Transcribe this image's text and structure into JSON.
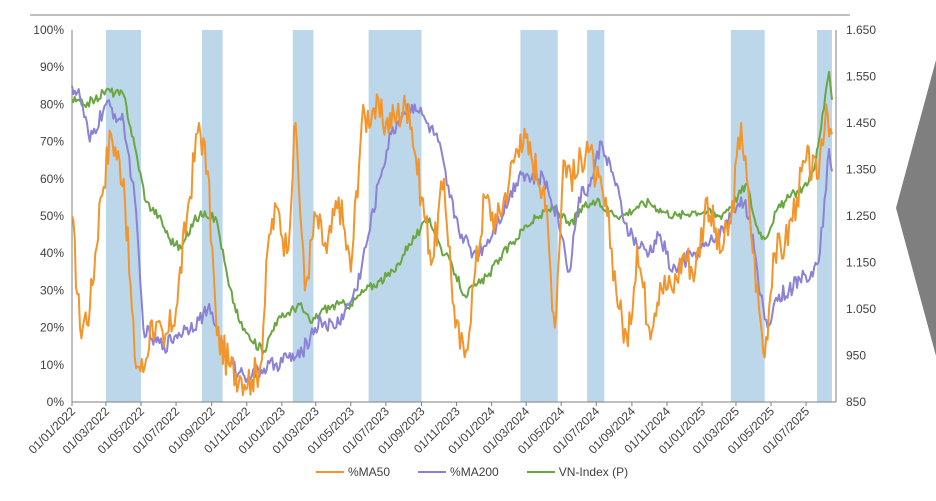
{
  "chart_data": {
    "type": "line",
    "title": "",
    "xlabel": "",
    "ylabel_left": "",
    "ylabel_right": "",
    "x_range": [
      "01/01/2022",
      "01/09/2025"
    ],
    "left_axis": {
      "ylim": [
        0,
        100
      ],
      "ticks": [
        "0%",
        "10%",
        "20%",
        "30%",
        "40%",
        "50%",
        "60%",
        "70%",
        "80%",
        "90%",
        "100%"
      ]
    },
    "right_axis": {
      "ylim": [
        850,
        1650
      ],
      "ticks": [
        "850",
        "950",
        "1.050",
        "1.150",
        "1.250",
        "1.350",
        "1.450",
        "1.550",
        "1.650"
      ]
    },
    "x_ticks": [
      "01/01/2022",
      "01/03/2022",
      "01/05/2022",
      "01/07/2022",
      "01/09/2022",
      "01/11/2022",
      "01/01/2023",
      "01/03/2023",
      "01/05/2023",
      "01/07/2023",
      "01/09/2023",
      "01/11/2023",
      "01/01/2024",
      "01/03/2024",
      "01/05/2024",
      "01/07/2024",
      "01/09/2024",
      "01/11/2024",
      "01/01/2025",
      "01/03/2025",
      "01/05/2025",
      "01/07/2025"
    ],
    "shaded_periods": [
      [
        "2022-03-01",
        "2022-05-01"
      ],
      [
        "2022-08-15",
        "2022-09-20"
      ],
      [
        "2023-01-20",
        "2023-02-25"
      ],
      [
        "2023-06-01",
        "2023-09-01"
      ],
      [
        "2024-02-20",
        "2024-04-25"
      ],
      [
        "2024-06-15",
        "2024-07-15"
      ],
      [
        "2025-02-20",
        "2025-04-20"
      ],
      [
        "2025-07-20",
        "2025-08-15"
      ]
    ],
    "colors": {
      "ma50": "#f2952c",
      "ma200": "#8b82d6",
      "vnindex": "#6aa641",
      "shade": "#bdd7ea",
      "axis": "#7f7f7f"
    },
    "series": [
      {
        "name": "%MA50",
        "axis": "left",
        "color": "#f2952c",
        "x": [
          "2022-01-01",
          "2022-01-15",
          "2022-02-01",
          "2022-02-20",
          "2022-03-10",
          "2022-04-01",
          "2022-04-20",
          "2022-05-05",
          "2022-05-20",
          "2022-06-10",
          "2022-07-01",
          "2022-07-20",
          "2022-08-10",
          "2022-08-25",
          "2022-09-10",
          "2022-10-01",
          "2022-10-20",
          "2022-11-10",
          "2022-11-25",
          "2022-12-10",
          "2022-12-25",
          "2023-01-10",
          "2023-01-25",
          "2023-02-10",
          "2023-03-01",
          "2023-03-20",
          "2023-04-10",
          "2023-05-01",
          "2023-05-20",
          "2023-06-10",
          "2023-07-01",
          "2023-07-20",
          "2023-08-10",
          "2023-09-01",
          "2023-09-20",
          "2023-10-10",
          "2023-10-30",
          "2023-11-15",
          "2023-12-01",
          "2023-12-20",
          "2024-01-10",
          "2024-02-01",
          "2024-02-20",
          "2024-03-10",
          "2024-04-01",
          "2024-04-20",
          "2024-05-05",
          "2024-05-25",
          "2024-06-15",
          "2024-07-01",
          "2024-07-20",
          "2024-08-10",
          "2024-08-25",
          "2024-09-10",
          "2024-10-01",
          "2024-10-20",
          "2024-11-10",
          "2024-12-01",
          "2024-12-20",
          "2025-01-10",
          "2025-02-01",
          "2025-02-20",
          "2025-03-10",
          "2025-03-25",
          "2025-04-10",
          "2025-04-20",
          "2025-05-05",
          "2025-05-25",
          "2025-06-15",
          "2025-07-01",
          "2025-07-20",
          "2025-08-05",
          "2025-08-15"
        ],
        "values": [
          50,
          20,
          25,
          55,
          72,
          60,
          12,
          8,
          22,
          15,
          25,
          50,
          75,
          62,
          18,
          10,
          7,
          6,
          10,
          45,
          52,
          40,
          75,
          30,
          50,
          40,
          55,
          35,
          75,
          79,
          75,
          77,
          80,
          55,
          38,
          60,
          20,
          12,
          32,
          55,
          48,
          60,
          72,
          66,
          58,
          20,
          65,
          60,
          70,
          60,
          50,
          25,
          15,
          42,
          20,
          32,
          30,
          40,
          35,
          55,
          40,
          48,
          75,
          50,
          25,
          12,
          40,
          42,
          55,
          65,
          60,
          80,
          72
        ]
      },
      {
        "name": "%MA200",
        "axis": "left",
        "color": "#8b82d6",
        "x": [
          "2022-01-01",
          "2022-01-15",
          "2022-02-01",
          "2022-03-01",
          "2022-04-01",
          "2022-04-20",
          "2022-05-05",
          "2022-05-20",
          "2022-06-10",
          "2022-07-01",
          "2022-07-20",
          "2022-08-10",
          "2022-08-25",
          "2022-09-10",
          "2022-10-01",
          "2022-10-20",
          "2022-11-10",
          "2022-12-01",
          "2022-12-20",
          "2023-01-10",
          "2023-02-01",
          "2023-02-20",
          "2023-03-10",
          "2023-04-01",
          "2023-04-20",
          "2023-05-10",
          "2023-06-01",
          "2023-06-20",
          "2023-07-10",
          "2023-08-01",
          "2023-08-20",
          "2023-09-10",
          "2023-09-30",
          "2023-10-20",
          "2023-11-10",
          "2023-11-30",
          "2023-12-20",
          "2024-01-10",
          "2024-02-01",
          "2024-02-20",
          "2024-03-10",
          "2024-04-01",
          "2024-04-25",
          "2024-05-15",
          "2024-06-01",
          "2024-06-20",
          "2024-07-10",
          "2024-08-01",
          "2024-08-20",
          "2024-09-10",
          "2024-10-01",
          "2024-10-20",
          "2024-11-10",
          "2024-12-01",
          "2024-12-20",
          "2025-01-10",
          "2025-02-01",
          "2025-02-20",
          "2025-03-10",
          "2025-03-25",
          "2025-04-10",
          "2025-04-25",
          "2025-05-10",
          "2025-06-01",
          "2025-06-20",
          "2025-07-10",
          "2025-07-25",
          "2025-08-10",
          "2025-08-15"
        ],
        "values": [
          85,
          82,
          70,
          80,
          75,
          55,
          20,
          17,
          15,
          18,
          20,
          22,
          25,
          20,
          10,
          8,
          7,
          9,
          10,
          12,
          12,
          18,
          22,
          20,
          24,
          30,
          45,
          60,
          72,
          78,
          80,
          75,
          70,
          55,
          45,
          40,
          42,
          48,
          55,
          62,
          60,
          60,
          50,
          35,
          55,
          58,
          70,
          60,
          48,
          42,
          40,
          45,
          35,
          38,
          40,
          42,
          45,
          50,
          55,
          50,
          30,
          20,
          28,
          30,
          33,
          35,
          40,
          68,
          62
        ]
      },
      {
        "name": "VN-Index (P)",
        "axis": "right",
        "color": "#6aa641",
        "x": [
          "2022-01-01",
          "2022-01-20",
          "2022-02-10",
          "2022-03-01",
          "2022-04-01",
          "2022-04-20",
          "2022-05-10",
          "2022-06-01",
          "2022-06-20",
          "2022-07-10",
          "2022-08-01",
          "2022-08-20",
          "2022-09-10",
          "2022-10-01",
          "2022-10-20",
          "2022-11-10",
          "2022-12-01",
          "2022-12-20",
          "2023-01-10",
          "2023-02-01",
          "2023-02-20",
          "2023-03-15",
          "2023-04-10",
          "2023-05-01",
          "2023-05-25",
          "2023-06-20",
          "2023-07-15",
          "2023-08-10",
          "2023-08-30",
          "2023-09-15",
          "2023-10-05",
          "2023-10-25",
          "2023-11-15",
          "2023-12-05",
          "2023-12-25",
          "2024-01-15",
          "2024-02-05",
          "2024-03-01",
          "2024-03-25",
          "2024-04-20",
          "2024-05-15",
          "2024-06-10",
          "2024-07-01",
          "2024-07-25",
          "2024-08-15",
          "2024-09-10",
          "2024-10-01",
          "2024-10-25",
          "2024-11-20",
          "2024-12-15",
          "2025-01-10",
          "2025-02-01",
          "2025-02-25",
          "2025-03-20",
          "2025-04-05",
          "2025-04-20",
          "2025-05-10",
          "2025-06-01",
          "2025-06-25",
          "2025-07-15",
          "2025-08-01",
          "2025-08-10",
          "2025-08-15"
        ],
        "values": [
          1500,
          1490,
          1500,
          1520,
          1510,
          1400,
          1280,
          1250,
          1200,
          1180,
          1240,
          1260,
          1240,
          1100,
          1020,
          980,
          960,
          1020,
          1040,
          1060,
          1020,
          1050,
          1060,
          1060,
          1090,
          1110,
          1130,
          1190,
          1220,
          1245,
          1180,
          1140,
          1080,
          1100,
          1120,
          1160,
          1190,
          1230,
          1250,
          1270,
          1230,
          1270,
          1280,
          1260,
          1250,
          1270,
          1280,
          1260,
          1250,
          1260,
          1260,
          1250,
          1280,
          1320,
          1230,
          1200,
          1260,
          1290,
          1310,
          1350,
          1480,
          1560,
          1500
        ]
      }
    ],
    "legend": [
      "%MA50",
      "%MA200",
      "VN-Index (P)"
    ],
    "legend_position": "bottom-center",
    "grid": false
  }
}
